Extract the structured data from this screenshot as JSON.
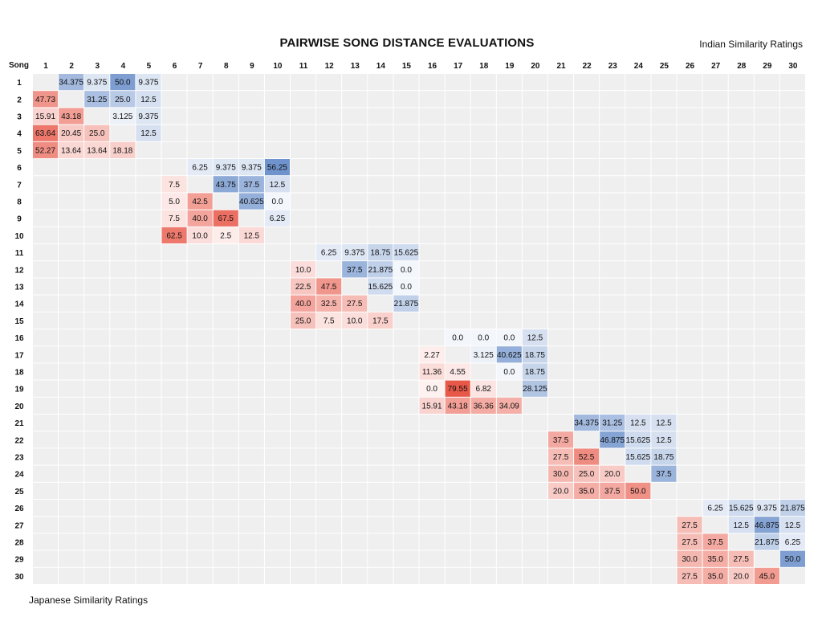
{
  "chart_data": {
    "type": "heatmap",
    "title": "PAIRWISE SONG DISTANCE EVALUATIONS",
    "upper_triangle_label": "Indian Similarity Ratings",
    "lower_triangle_label": "Japanese Similarity Ratings",
    "corner_label": "Song",
    "labels": [
      "1",
      "2",
      "3",
      "4",
      "5",
      "6",
      "7",
      "8",
      "9",
      "10",
      "11",
      "12",
      "13",
      "14",
      "15",
      "16",
      "17",
      "18",
      "19",
      "20",
      "21",
      "22",
      "23",
      "24",
      "25",
      "26",
      "27",
      "28",
      "29",
      "30"
    ],
    "block_size": 5,
    "upper_scale_max": 56.25,
    "lower_scale_max": 79.55,
    "colors": {
      "upper": "#6f93cc",
      "lower": "#e85848",
      "empty": "#efefef",
      "gap": "#ffffff"
    },
    "blocks": [
      {
        "upper": [
          [
            "1",
            "2",
            "34.375"
          ],
          [
            "1",
            "3",
            "9.375"
          ],
          [
            "1",
            "4",
            "50.0"
          ],
          [
            "1",
            "5",
            "9.375"
          ],
          [
            "2",
            "3",
            "31.25"
          ],
          [
            "2",
            "4",
            "25.0"
          ],
          [
            "2",
            "5",
            "12.5"
          ],
          [
            "3",
            "4",
            "3.125"
          ],
          [
            "3",
            "5",
            "9.375"
          ],
          [
            "4",
            "5",
            "12.5"
          ]
        ],
        "lower": [
          [
            "2",
            "1",
            "47.73"
          ],
          [
            "3",
            "1",
            "15.91"
          ],
          [
            "3",
            "2",
            "43.18"
          ],
          [
            "4",
            "1",
            "63.64"
          ],
          [
            "4",
            "2",
            "20.45"
          ],
          [
            "4",
            "3",
            "25.0"
          ],
          [
            "5",
            "1",
            "52.27"
          ],
          [
            "5",
            "2",
            "13.64"
          ],
          [
            "5",
            "3",
            "13.64"
          ],
          [
            "5",
            "4",
            "18.18"
          ]
        ]
      },
      {
        "upper": [
          [
            "6",
            "7",
            "6.25"
          ],
          [
            "6",
            "8",
            "9.375"
          ],
          [
            "6",
            "9",
            "9.375"
          ],
          [
            "6",
            "10",
            "56.25"
          ],
          [
            "7",
            "8",
            "43.75"
          ],
          [
            "7",
            "9",
            "37.5"
          ],
          [
            "7",
            "10",
            "12.5"
          ],
          [
            "8",
            "9",
            "40.625"
          ],
          [
            "8",
            "10",
            "0.0"
          ],
          [
            "9",
            "10",
            "6.25"
          ]
        ],
        "lower": [
          [
            "7",
            "6",
            "7.5"
          ],
          [
            "8",
            "6",
            "5.0"
          ],
          [
            "8",
            "7",
            "42.5"
          ],
          [
            "9",
            "6",
            "7.5"
          ],
          [
            "9",
            "7",
            "40.0"
          ],
          [
            "9",
            "8",
            "67.5"
          ],
          [
            "10",
            "6",
            "62.5"
          ],
          [
            "10",
            "7",
            "10.0"
          ],
          [
            "10",
            "8",
            "2.5"
          ],
          [
            "10",
            "9",
            "12.5"
          ]
        ]
      },
      {
        "upper": [
          [
            "11",
            "12",
            "6.25"
          ],
          [
            "11",
            "13",
            "9.375"
          ],
          [
            "11",
            "14",
            "18.75"
          ],
          [
            "11",
            "15",
            "15.625"
          ],
          [
            "12",
            "13",
            "37.5"
          ],
          [
            "12",
            "14",
            "21.875"
          ],
          [
            "12",
            "15",
            "0.0"
          ],
          [
            "13",
            "14",
            "15.625"
          ],
          [
            "13",
            "15",
            "0.0"
          ],
          [
            "14",
            "15",
            "21.875"
          ]
        ],
        "lower": [
          [
            "12",
            "11",
            "10.0"
          ],
          [
            "13",
            "11",
            "22.5"
          ],
          [
            "13",
            "12",
            "47.5"
          ],
          [
            "14",
            "11",
            "40.0"
          ],
          [
            "14",
            "12",
            "32.5"
          ],
          [
            "14",
            "13",
            "27.5"
          ],
          [
            "15",
            "11",
            "25.0"
          ],
          [
            "15",
            "12",
            "7.5"
          ],
          [
            "15",
            "13",
            "10.0"
          ],
          [
            "15",
            "14",
            "17.5"
          ]
        ]
      },
      {
        "upper": [
          [
            "16",
            "17",
            "0.0"
          ],
          [
            "16",
            "18",
            "0.0"
          ],
          [
            "16",
            "19",
            "0.0"
          ],
          [
            "16",
            "20",
            "12.5"
          ],
          [
            "17",
            "18",
            "3.125"
          ],
          [
            "17",
            "19",
            "40.625"
          ],
          [
            "17",
            "20",
            "18.75"
          ],
          [
            "18",
            "19",
            "0.0"
          ],
          [
            "18",
            "20",
            "18.75"
          ],
          [
            "19",
            "20",
            "28.125"
          ]
        ],
        "lower": [
          [
            "17",
            "16",
            "2.27"
          ],
          [
            "18",
            "16",
            "11.36"
          ],
          [
            "18",
            "17",
            "4.55"
          ],
          [
            "19",
            "16",
            "0.0"
          ],
          [
            "19",
            "17",
            "79.55"
          ],
          [
            "19",
            "18",
            "6.82"
          ],
          [
            "20",
            "16",
            "15.91"
          ],
          [
            "20",
            "17",
            "43.18"
          ],
          [
            "20",
            "18",
            "36.36"
          ],
          [
            "20",
            "19",
            "34.09"
          ]
        ]
      },
      {
        "upper": [
          [
            "21",
            "22",
            "34.375"
          ],
          [
            "21",
            "23",
            "31.25"
          ],
          [
            "21",
            "24",
            "12.5"
          ],
          [
            "21",
            "25",
            "12.5"
          ],
          [
            "22",
            "23",
            "46.875"
          ],
          [
            "22",
            "24",
            "15.625"
          ],
          [
            "22",
            "25",
            "12.5"
          ],
          [
            "23",
            "24",
            "15.625"
          ],
          [
            "23",
            "25",
            "18.75"
          ],
          [
            "24",
            "25",
            "37.5"
          ]
        ],
        "lower": [
          [
            "22",
            "21",
            "37.5"
          ],
          [
            "23",
            "21",
            "27.5"
          ],
          [
            "23",
            "22",
            "52.5"
          ],
          [
            "24",
            "21",
            "30.0"
          ],
          [
            "24",
            "22",
            "25.0"
          ],
          [
            "24",
            "23",
            "20.0"
          ],
          [
            "25",
            "21",
            "20.0"
          ],
          [
            "25",
            "22",
            "35.0"
          ],
          [
            "25",
            "23",
            "37.5"
          ],
          [
            "25",
            "24",
            "50.0"
          ]
        ]
      },
      {
        "upper": [
          [
            "26",
            "27",
            "6.25"
          ],
          [
            "26",
            "28",
            "15.625"
          ],
          [
            "26",
            "29",
            "9.375"
          ],
          [
            "26",
            "30",
            "21.875"
          ],
          [
            "27",
            "28",
            "12.5"
          ],
          [
            "27",
            "29",
            "46.875"
          ],
          [
            "27",
            "30",
            "12.5"
          ],
          [
            "28",
            "29",
            "21.875"
          ],
          [
            "28",
            "30",
            "6.25"
          ],
          [
            "29",
            "30",
            "50.0"
          ]
        ],
        "lower": [
          [
            "27",
            "26",
            "27.5"
          ],
          [
            "28",
            "26",
            "27.5"
          ],
          [
            "28",
            "27",
            "37.5"
          ],
          [
            "29",
            "26",
            "30.0"
          ],
          [
            "29",
            "27",
            "35.0"
          ],
          [
            "29",
            "28",
            "27.5"
          ],
          [
            "30",
            "26",
            "27.5"
          ],
          [
            "30",
            "27",
            "35.0"
          ],
          [
            "30",
            "28",
            "20.0"
          ],
          [
            "30",
            "29",
            "45.0"
          ]
        ]
      }
    ]
  }
}
